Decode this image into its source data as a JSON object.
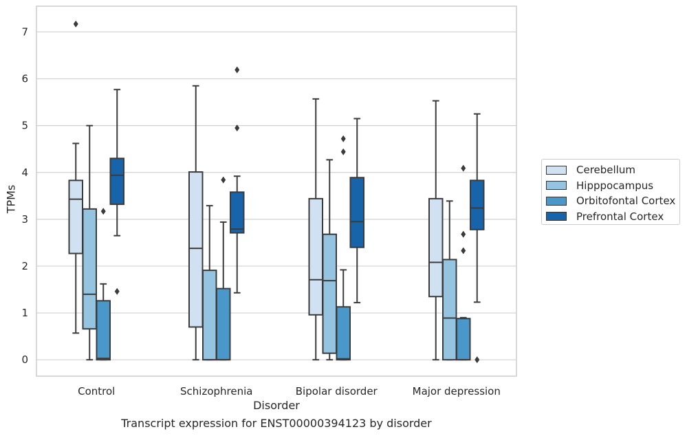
{
  "chart_data": {
    "type": "box",
    "title": "Transcript expression for ENST00000394123 by disorder",
    "xlabel": "Disorder",
    "ylabel": "TPMs",
    "ylim": [
      -0.35,
      7.55
    ],
    "yticks": [
      0,
      1,
      2,
      3,
      4,
      5,
      6,
      7
    ],
    "grid": true,
    "legend_position": "right",
    "categories": [
      "Control",
      "Schizophrenia",
      "Bipolar disorder",
      "Major depression"
    ],
    "series": [
      {
        "name": "Cerebellum",
        "color": "#d0e1f2",
        "boxes": [
          {
            "whislo": 0.57,
            "q1": 2.27,
            "med": 3.43,
            "q3": 3.83,
            "whishi": 4.62,
            "fliers": [
              7.17
            ]
          },
          {
            "whislo": 0.0,
            "q1": 0.7,
            "med": 2.38,
            "q3": 4.01,
            "whishi": 5.85,
            "fliers": []
          },
          {
            "whislo": 0.0,
            "q1": 0.96,
            "med": 1.71,
            "q3": 3.44,
            "whishi": 5.57,
            "fliers": []
          },
          {
            "whislo": 0.0,
            "q1": 1.35,
            "med": 2.08,
            "q3": 3.44,
            "whishi": 5.53,
            "fliers": []
          }
        ]
      },
      {
        "name": "Hipppocampus",
        "color": "#94c4df",
        "boxes": [
          {
            "whislo": 0.0,
            "q1": 0.66,
            "med": 1.4,
            "q3": 3.22,
            "whishi": 5.0,
            "fliers": []
          },
          {
            "whislo": 0.0,
            "q1": 0.0,
            "med": 0.0,
            "q3": 1.91,
            "whishi": 3.29,
            "fliers": []
          },
          {
            "whislo": 0.0,
            "q1": 0.14,
            "med": 1.69,
            "q3": 2.68,
            "whishi": 4.27,
            "fliers": []
          },
          {
            "whislo": 0.0,
            "q1": 0.0,
            "med": 0.89,
            "q3": 2.14,
            "whishi": 3.39,
            "fliers": []
          }
        ]
      },
      {
        "name": "Orbitofontal Cortex",
        "color": "#4a98c9",
        "boxes": [
          {
            "whislo": 0.0,
            "q1": 0.0,
            "med": 0.03,
            "q3": 1.26,
            "whishi": 1.62,
            "fliers": [
              3.17
            ]
          },
          {
            "whislo": 0.0,
            "q1": 0.0,
            "med": 0.0,
            "q3": 1.52,
            "whishi": 2.94,
            "fliers": [
              3.84
            ]
          },
          {
            "whislo": 0.0,
            "q1": 0.0,
            "med": 0.02,
            "q3": 1.13,
            "whishi": 1.92,
            "fliers": [
              4.44,
              4.72
            ]
          },
          {
            "whislo": 0.0,
            "q1": 0.0,
            "med": 0.0,
            "q3": 0.88,
            "whishi": 0.9,
            "fliers": [
              2.33,
              2.68,
              4.09
            ]
          }
        ]
      },
      {
        "name": "Prefrontal Cortex",
        "color": "#1764ab",
        "boxes": [
          {
            "whislo": 2.65,
            "q1": 3.32,
            "med": 3.94,
            "q3": 4.3,
            "whishi": 5.77,
            "fliers": [
              1.46
            ]
          },
          {
            "whislo": 1.43,
            "q1": 2.71,
            "med": 2.79,
            "q3": 3.58,
            "whishi": 3.92,
            "fliers": [
              4.95,
              6.19
            ]
          },
          {
            "whislo": 1.22,
            "q1": 2.4,
            "med": 2.95,
            "q3": 3.89,
            "whishi": 5.15,
            "fliers": []
          },
          {
            "whislo": 1.23,
            "q1": 2.78,
            "med": 3.24,
            "q3": 3.83,
            "whishi": 5.25,
            "fliers": [
              0.0
            ]
          }
        ]
      }
    ]
  }
}
